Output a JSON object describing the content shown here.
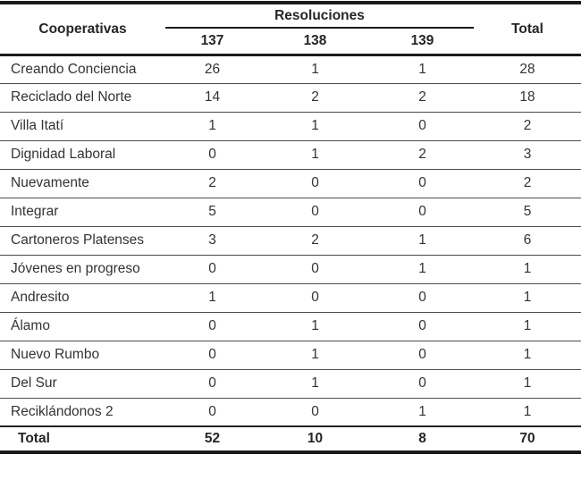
{
  "colors": {
    "text": "#333333",
    "border_heavy": "#1a1a1a",
    "border_light": "#4d4d4d",
    "background": "#ffffff"
  },
  "chart_data": {
    "type": "table",
    "row_header": "Cooperativas",
    "column_group": "Resoluciones",
    "columns": [
      "137",
      "138",
      "139",
      "Total"
    ],
    "rows": [
      [
        "Creando Conciencia",
        26,
        1,
        1,
        28
      ],
      [
        "Reciclado del Norte",
        14,
        2,
        2,
        18
      ],
      [
        "Villa Itatí",
        1,
        1,
        0,
        2
      ],
      [
        "Dignidad Laboral",
        0,
        1,
        2,
        3
      ],
      [
        "Nuevamente",
        2,
        0,
        0,
        2
      ],
      [
        "Integrar",
        5,
        0,
        0,
        5
      ],
      [
        "Cartoneros Platenses",
        3,
        2,
        1,
        6
      ],
      [
        "Jóvenes en progreso",
        0,
        0,
        1,
        1
      ],
      [
        "Andresito",
        1,
        0,
        0,
        1
      ],
      [
        "Álamo",
        0,
        1,
        0,
        1
      ],
      [
        "Nuevo Rumbo",
        0,
        1,
        0,
        1
      ],
      [
        "Del Sur",
        0,
        1,
        0,
        1
      ],
      [
        "Reciklándonos 2",
        0,
        0,
        1,
        1
      ]
    ],
    "footer": [
      "Total",
      52,
      10,
      8,
      70
    ]
  }
}
